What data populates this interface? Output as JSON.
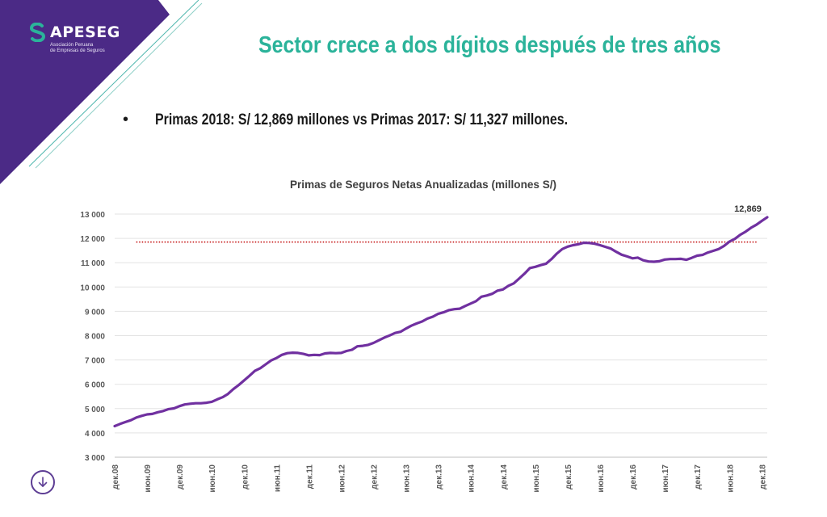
{
  "brand": {
    "name": "APESEG",
    "subtitle_line1": "Asociación Peruana",
    "subtitle_line2": "de Empresas de Seguros",
    "purple": "#4b2a86",
    "teal": "#2bb39a"
  },
  "slide": {
    "title": "Sector crece a dos dígitos después de tres años",
    "bullet_marker": "•",
    "bullet": "Primas 2018: S/ 12,869 millones vs Primas 2017: S/ 11,327 millones."
  },
  "nav": {
    "icon": "arrow-down-circle-icon"
  },
  "chart_data": {
    "type": "line",
    "title": "Primas de Seguros Netas Anualizadas (millones S/)",
    "xlabel": "",
    "ylabel": "",
    "ylim": [
      3000,
      13000
    ],
    "yticks": [
      3000,
      4000,
      5000,
      6000,
      7000,
      8000,
      9000,
      10000,
      11000,
      12000,
      13000
    ],
    "ytick_labels": [
      "3 000",
      "4 000",
      "5 000",
      "6 000",
      "7 000",
      "8 000",
      "9 000",
      "10 000",
      "11 000",
      "12 000",
      "13 000"
    ],
    "x_tick_labels": [
      "дек.08",
      "июн.09",
      "дек.09",
      "июн.10",
      "дек.10",
      "июн.11",
      "дек.11",
      "июн.12",
      "дек.12",
      "июн.13",
      "дек.13",
      "июн.14",
      "дек.14",
      "июн.15",
      "дек.15",
      "июн.16",
      "дек.16",
      "июн.17",
      "дек.17",
      "июн.18",
      "дек.18"
    ],
    "grid": true,
    "line_color": "#7030a0",
    "reference_line": {
      "value": 11850,
      "color": "#c00000",
      "style": "dotted",
      "x_start": "апр.09",
      "x_end": "ноя.18"
    },
    "end_label": "12,869",
    "series": [
      {
        "values": [
          4280,
          4370,
          4450,
          4520,
          4630,
          4700,
          4760,
          4780,
          4850,
          4900,
          4980,
          5010,
          5100,
          5170,
          5200,
          5220,
          5220,
          5240,
          5280,
          5380,
          5470,
          5600,
          5800,
          5970,
          6160,
          6350,
          6550,
          6660,
          6820,
          6980,
          7080,
          7210,
          7280,
          7300,
          7290,
          7250,
          7190,
          7210,
          7200,
          7270,
          7290,
          7280,
          7290,
          7370,
          7420,
          7560,
          7580,
          7620,
          7700,
          7810,
          7920,
          8010,
          8110,
          8160,
          8290,
          8410,
          8500,
          8580,
          8700,
          8780,
          8900,
          8960,
          9050,
          9090,
          9110,
          9220,
          9320,
          9420,
          9600,
          9650,
          9720,
          9850,
          9900,
          10050,
          10150,
          10350,
          10550,
          10780,
          10830,
          10900,
          10960,
          11150,
          11380,
          11560,
          11660,
          11720,
          11760,
          11820,
          11810,
          11780,
          11720,
          11650,
          11580,
          11450,
          11330,
          11260,
          11180,
          11210,
          11100,
          11050,
          11040,
          11060,
          11130,
          11150,
          11150,
          11160,
          11120,
          11200,
          11290,
          11320,
          11420,
          11490,
          11560,
          11690,
          11870,
          11980,
          12150,
          12280,
          12440,
          12560,
          12720,
          12869
        ]
      }
    ]
  }
}
